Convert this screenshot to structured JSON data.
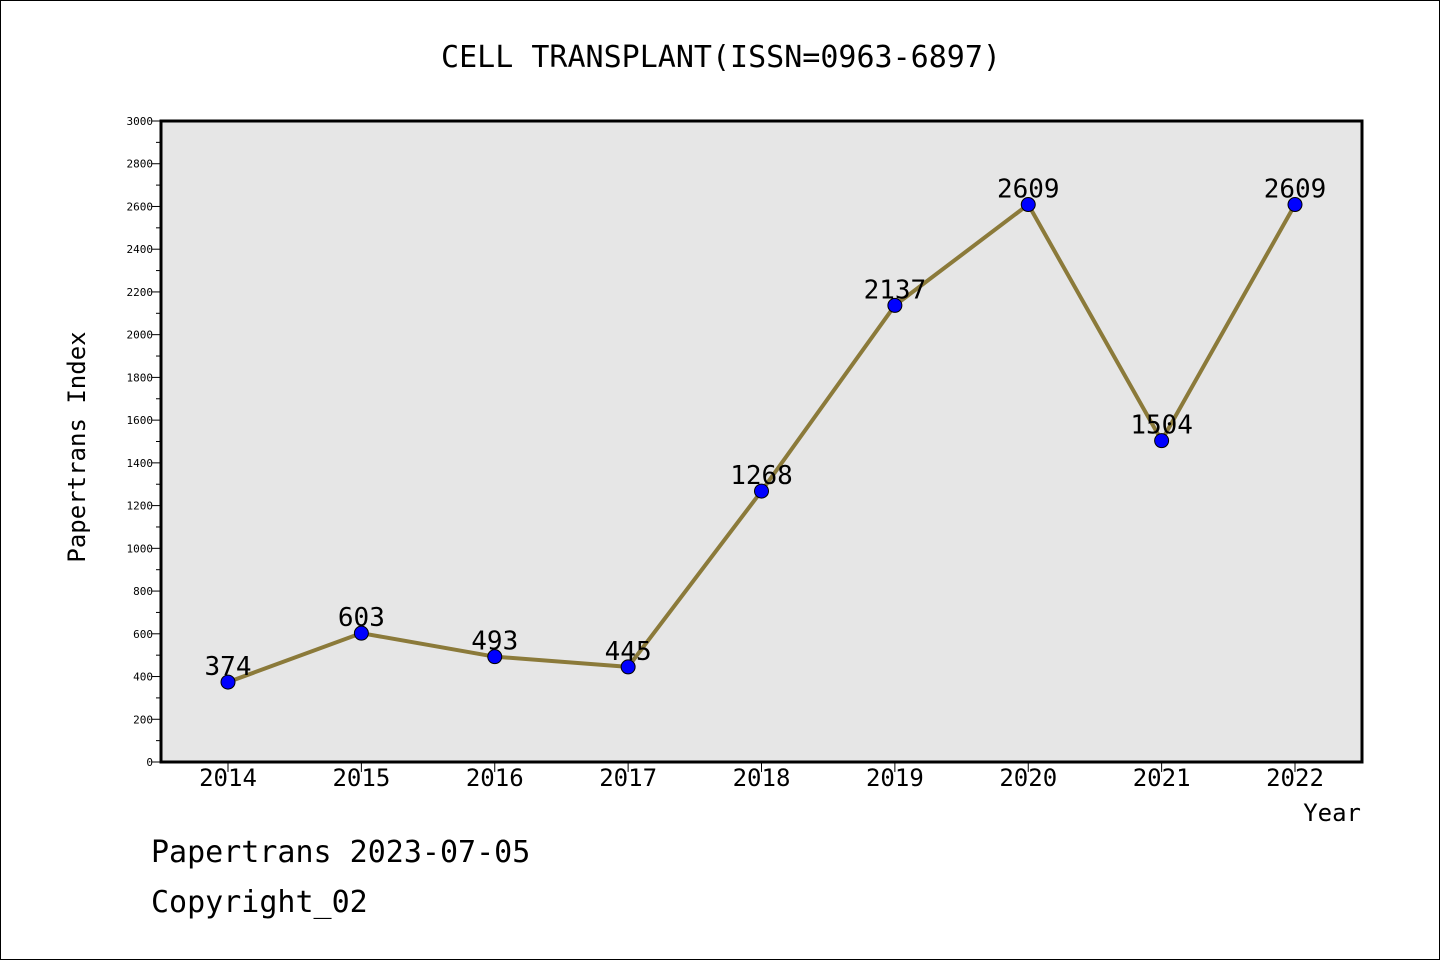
{
  "chart_data": {
    "type": "line",
    "title": "CELL TRANSPLANT(ISSN=0963-6897)",
    "xlabel": "Year",
    "ylabel": "Papertrans Index",
    "categories": [
      "2014",
      "2015",
      "2016",
      "2017",
      "2018",
      "2019",
      "2020",
      "2021",
      "2022"
    ],
    "series": [
      {
        "values": [
          374,
          603,
          493,
          445,
          1268,
          2137,
          2609,
          1504,
          2609
        ]
      }
    ],
    "data_labels": [
      "374",
      "603",
      "493",
      "445",
      "1268",
      "2137",
      "2609",
      "1504",
      "2609"
    ],
    "ylim": [
      0,
      3000
    ],
    "yticks": [
      "0",
      "200",
      "400",
      "600",
      "800",
      "1000",
      "1200",
      "1400",
      "1600",
      "1800",
      "2000",
      "2200",
      "2400",
      "2600",
      "2800",
      "3000"
    ],
    "grid": false,
    "legend": "none",
    "colors": {
      "line": "#8b7a3a",
      "marker": "#0000ff",
      "plot_background": "#e6e6e6"
    }
  },
  "footer": {
    "line1": "Papertrans 2023-07-05",
    "line2": "Copyright_02"
  }
}
